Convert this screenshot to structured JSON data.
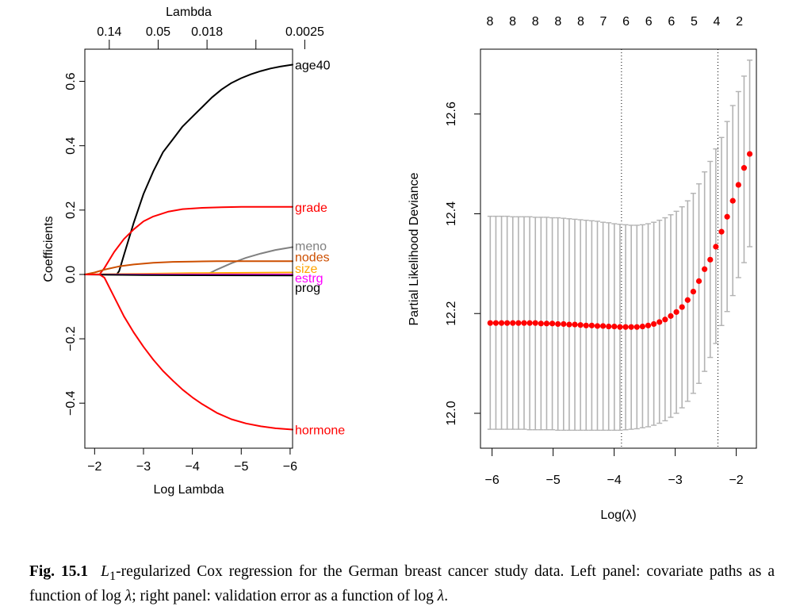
{
  "chart_data": [
    {
      "type": "line",
      "panel": "left",
      "title": "",
      "xlabel": "Log Lambda",
      "ylabel": "Coefficients",
      "top_axis_label": "Lambda",
      "top_tick_labels": [
        "0.14",
        "0.05",
        "0.018",
        "",
        "0.0025"
      ],
      "x_ticks": [
        -2,
        -3,
        -4,
        -5,
        -6
      ],
      "x_tick_labels": [
        "−2",
        "−3",
        "−4",
        "−5",
        "−6"
      ],
      "y_ticks": [
        -0.4,
        -0.2,
        0.0,
        0.2,
        0.4,
        0.6
      ],
      "y_tick_labels": [
        "−0.4",
        "−0.2",
        "0.0",
        "0.2",
        "0.4",
        "0.6"
      ],
      "xlim": [
        -1.8,
        -6.05
      ],
      "ylim": [
        -0.54,
        0.7
      ],
      "grid": false,
      "series": [
        {
          "name": "age40",
          "color": "#000000",
          "x": [
            -1.8,
            -2.45,
            -2.5,
            -2.6,
            -2.8,
            -3.0,
            -3.2,
            -3.4,
            -3.6,
            -3.8,
            -4.0,
            -4.2,
            -4.4,
            -4.6,
            -4.8,
            -5.0,
            -5.2,
            -5.4,
            -5.6,
            -5.8,
            -6.05
          ],
          "y": [
            0,
            0,
            0.01,
            0.06,
            0.16,
            0.25,
            0.32,
            0.38,
            0.42,
            0.46,
            0.49,
            0.52,
            0.55,
            0.575,
            0.595,
            0.61,
            0.622,
            0.632,
            0.64,
            0.646,
            0.652
          ]
        },
        {
          "name": "grade",
          "color": "#ff0000",
          "x": [
            -1.8,
            -2.1,
            -2.2,
            -2.4,
            -2.6,
            -2.8,
            -3.0,
            -3.2,
            -3.5,
            -3.8,
            -4.2,
            -4.6,
            -5.0,
            -5.5,
            -6.05
          ],
          "y": [
            0,
            0,
            0.02,
            0.07,
            0.11,
            0.14,
            0.165,
            0.18,
            0.195,
            0.203,
            0.207,
            0.209,
            0.21,
            0.21,
            0.21
          ]
        },
        {
          "name": "meno",
          "color": "#808080",
          "x": [
            -1.8,
            -4.3,
            -4.5,
            -4.8,
            -5.1,
            -5.4,
            -5.7,
            -6.05
          ],
          "y": [
            0,
            0,
            0.015,
            0.035,
            0.052,
            0.065,
            0.076,
            0.085
          ]
        },
        {
          "name": "nodes",
          "color": "#cd4f00",
          "x": [
            -1.8,
            -2.0,
            -2.2,
            -2.5,
            -2.8,
            -3.2,
            -3.6,
            -4.0,
            -4.5,
            -5.0,
            -6.05
          ],
          "y": [
            0,
            0.006,
            0.015,
            0.025,
            0.031,
            0.036,
            0.039,
            0.04,
            0.041,
            0.041,
            0.041
          ]
        },
        {
          "name": "size",
          "color": "#ffa500",
          "x": [
            -1.8,
            -3.0,
            -4.0,
            -6.05
          ],
          "y": [
            0,
            0.002,
            0.004,
            0.006
          ]
        },
        {
          "name": "estrg",
          "color": "#ff00ff",
          "x": [
            -1.8,
            -6.05
          ],
          "y": [
            0,
            0
          ]
        },
        {
          "name": "prog",
          "color": "#000000",
          "x": [
            -1.8,
            -3.0,
            -6.05
          ],
          "y": [
            0,
            -0.002,
            -0.003
          ]
        },
        {
          "name": "hormone",
          "color": "#ff0000",
          "x": [
            -1.8,
            -2.1,
            -2.2,
            -2.4,
            -2.6,
            -2.8,
            -3.0,
            -3.2,
            -3.4,
            -3.6,
            -3.8,
            -4.0,
            -4.2,
            -4.5,
            -4.8,
            -5.1,
            -5.4,
            -5.7,
            -6.05
          ],
          "y": [
            0,
            0,
            -0.01,
            -0.07,
            -0.13,
            -0.18,
            -0.225,
            -0.265,
            -0.3,
            -0.33,
            -0.358,
            -0.382,
            -0.403,
            -0.43,
            -0.45,
            -0.463,
            -0.472,
            -0.478,
            -0.482
          ]
        }
      ],
      "line_labels": [
        {
          "name": "age40",
          "color": "#000000",
          "y": 0.652
        },
        {
          "name": "grade",
          "color": "#ff0000",
          "y": 0.21
        },
        {
          "name": "meno",
          "color": "#808080",
          "y": 0.09
        },
        {
          "name": "nodes",
          "color": "#cd4f00",
          "y": 0.055
        },
        {
          "name": "size",
          "color": "#ffa500",
          "y": 0.02
        },
        {
          "name": "estrg",
          "color": "#ff00ff",
          "y": -0.01
        },
        {
          "name": "prog",
          "color": "#000000",
          "y": -0.04
        },
        {
          "name": "hormone",
          "color": "#ff0000",
          "y": -0.482
        }
      ]
    },
    {
      "type": "scatter",
      "panel": "right",
      "title": "",
      "xlabel": "Log(λ)",
      "ylabel": "Partial Likelihood Deviance",
      "top_tick_labels": [
        "8",
        "8",
        "8",
        "8",
        "8",
        "7",
        "6",
        "6",
        "6",
        "5",
        "4",
        "2"
      ],
      "x_ticks": [
        -6,
        -5,
        -4,
        -3,
        -2
      ],
      "x_tick_labels": [
        "−6",
        "−5",
        "−4",
        "−3",
        "−2"
      ],
      "y_ticks": [
        12.0,
        12.2,
        12.4,
        12.6
      ],
      "y_tick_labels": [
        "12.0",
        "12.2",
        "12.4",
        "12.6"
      ],
      "xlim": [
        -6.19,
        -1.67
      ],
      "ylim": [
        11.93,
        12.73
      ],
      "grid": false,
      "point_color": "#ff0000",
      "errorbar_color": "#b3b3b3",
      "vlines": [
        -3.88,
        -2.3
      ],
      "series": [
        {
          "name": "cv_mean",
          "x_start": -6.03,
          "x_step": 0.0924,
          "mean": [
            12.181,
            12.181,
            12.181,
            12.181,
            12.181,
            12.181,
            12.181,
            12.181,
            12.181,
            12.18,
            12.18,
            12.18,
            12.179,
            12.179,
            12.178,
            12.178,
            12.177,
            12.176,
            12.176,
            12.175,
            12.175,
            12.174,
            12.174,
            12.173,
            12.173,
            12.173,
            12.173,
            12.174,
            12.176,
            12.179,
            12.183,
            12.188,
            12.195,
            12.203,
            12.213,
            12.227,
            12.244,
            12.265,
            12.289,
            12.308,
            12.334,
            12.364,
            12.394,
            12.426,
            12.458,
            12.492,
            12.52
          ],
          "upper": [
            12.395,
            12.395,
            12.395,
            12.395,
            12.394,
            12.394,
            12.394,
            12.394,
            12.393,
            12.393,
            12.393,
            12.392,
            12.392,
            12.391,
            12.39,
            12.389,
            12.388,
            12.387,
            12.386,
            12.385,
            12.383,
            12.382,
            12.38,
            12.379,
            12.378,
            12.377,
            12.377,
            12.378,
            12.38,
            12.383,
            12.387,
            12.392,
            12.398,
            12.405,
            12.414,
            12.426,
            12.441,
            12.46,
            12.484,
            12.505,
            12.53,
            12.553,
            12.585,
            12.617,
            12.645,
            12.676,
            12.708
          ],
          "lower": [
            11.968,
            11.968,
            11.968,
            11.968,
            11.968,
            11.968,
            11.968,
            11.967,
            11.967,
            11.967,
            11.967,
            11.967,
            11.966,
            11.966,
            11.966,
            11.966,
            11.966,
            11.966,
            11.966,
            11.966,
            11.966,
            11.966,
            11.966,
            11.966,
            11.967,
            11.968,
            11.969,
            11.971,
            11.973,
            11.976,
            11.98,
            11.985,
            11.992,
            12.0,
            12.011,
            12.024,
            12.04,
            12.06,
            12.084,
            12.112,
            12.14,
            12.176,
            12.204,
            12.236,
            12.272,
            12.302,
            12.334
          ]
        }
      ]
    }
  ],
  "caption": {
    "label": "Fig. 15.1",
    "math_prefix": "L",
    "math_sub": "1",
    "text_1": "-regularized Cox regression for the German breast cancer study data. Left panel: covariate paths as a function of log ",
    "lambda": "λ",
    "text_2": "; right panel: validation error as a function of log ",
    "end": "."
  }
}
